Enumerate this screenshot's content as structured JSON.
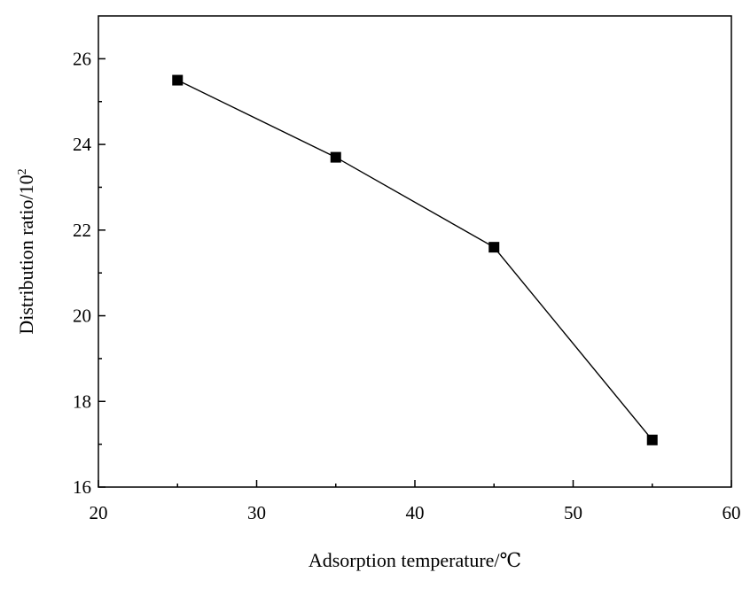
{
  "chart_data": {
    "type": "line",
    "title": "",
    "xlabel": "Adsorption temperature/℃",
    "ylabel_base": "Distribution ratio/10",
    "ylabel_sup": "2",
    "xlim": [
      20,
      60
    ],
    "ylim": [
      16,
      27
    ],
    "x_ticks": [
      20,
      30,
      40,
      50,
      60
    ],
    "y_ticks": [
      16,
      18,
      20,
      22,
      24,
      26
    ],
    "grid": false,
    "legend": "none",
    "marker": "square",
    "color": "#000000",
    "series": [
      {
        "x": [
          25,
          35,
          45,
          55
        ],
        "y": [
          25.5,
          23.7,
          21.6,
          17.1
        ]
      }
    ]
  }
}
